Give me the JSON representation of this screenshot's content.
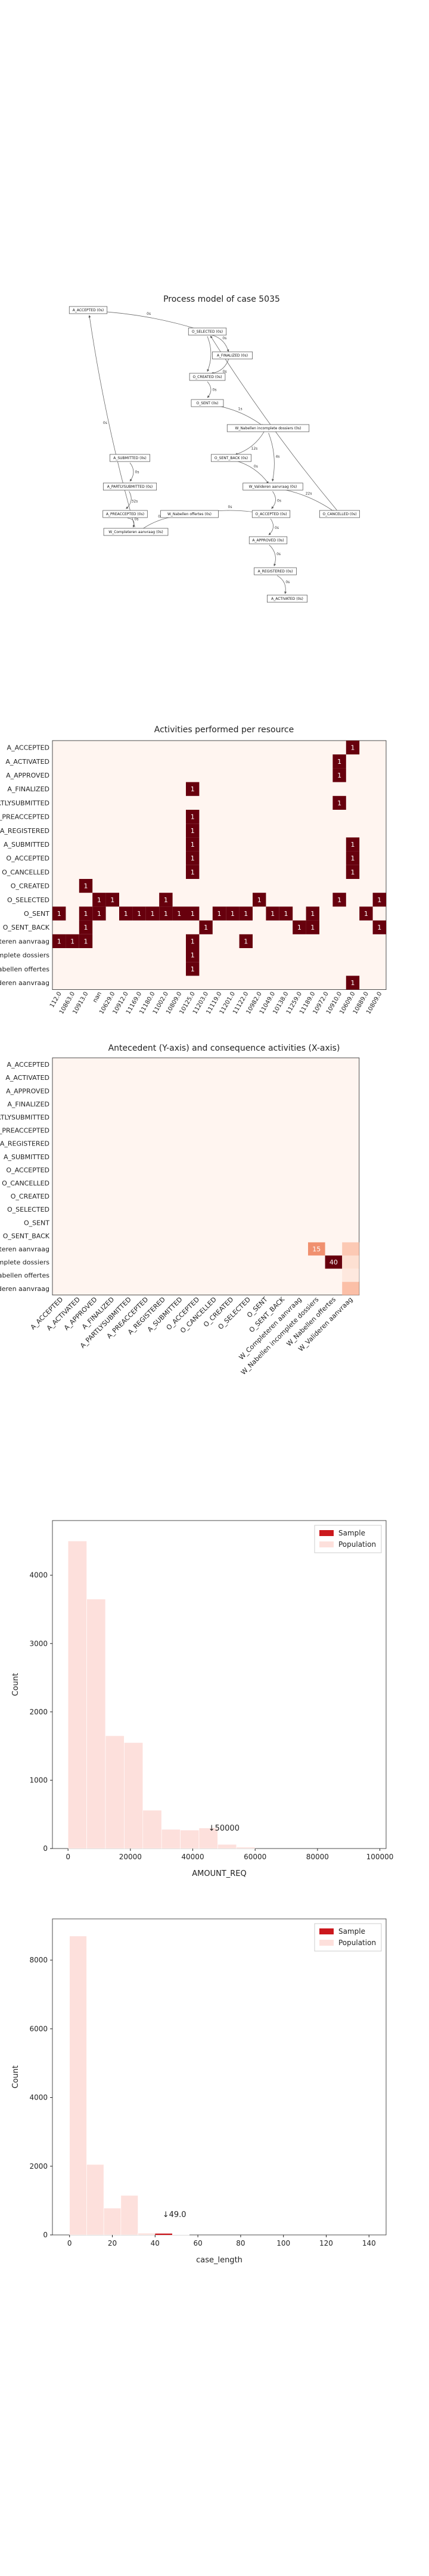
{
  "process_model": {
    "title": "Process model of case 5035",
    "nodes": [
      {
        "id": "A_ACCEPTED",
        "label": "A_ACCEPTED (0s)"
      },
      {
        "id": "O_SELECTED",
        "label": "O_SELECTED (0s)"
      },
      {
        "id": "A_FINALIZED",
        "label": "A_FINALIZED (0s)"
      },
      {
        "id": "O_CREATED",
        "label": "O_CREATED (0s)"
      },
      {
        "id": "O_SENT",
        "label": "O_SENT (0s)"
      },
      {
        "id": "W_Nabellen_inc",
        "label": "W_Nabellen incomplete dossiers (0s)"
      },
      {
        "id": "A_SUBMITTED",
        "label": "A_SUBMITTED (0s)"
      },
      {
        "id": "O_SENT_BACK",
        "label": "O_SENT_BACK (0s)"
      },
      {
        "id": "A_PARTLYSUBMITTED",
        "label": "A_PARTLYSUBMITTED (0s)"
      },
      {
        "id": "W_Valideren",
        "label": "W_Valideren aanvraag (0s)"
      },
      {
        "id": "A_PREACCEPTED",
        "label": "A_PREACCEPTED (0s)"
      },
      {
        "id": "W_Nabellen_off",
        "label": "W_Nabellen offertes (0s)"
      },
      {
        "id": "O_ACCEPTED",
        "label": "O_ACCEPTED (0s)"
      },
      {
        "id": "O_CANCELLED",
        "label": "O_CANCELLED (0s)"
      },
      {
        "id": "W_Completeren",
        "label": "W_Completeren aanvraag (0s)"
      },
      {
        "id": "A_APPROVED",
        "label": "A_APPROVED (0s)"
      },
      {
        "id": "A_REGISTERED",
        "label": "A_REGISTERED (0s)"
      },
      {
        "id": "A_ACTIVATED",
        "label": "A_ACTIVATED (0s)"
      }
    ],
    "edges": [
      {
        "from": "A_ACCEPTED",
        "to": "O_SELECTED",
        "label": "0s"
      },
      {
        "from": "O_SELECTED",
        "to": "A_FINALIZED",
        "label": "0s"
      },
      {
        "from": "O_SELECTED",
        "to": "O_CREATED",
        "label": "0s"
      },
      {
        "from": "A_FINALIZED",
        "to": "O_CREATED",
        "label": "0s"
      },
      {
        "from": "O_CREATED",
        "to": "O_SENT",
        "label": "0s"
      },
      {
        "from": "O_SENT",
        "to": "W_Nabellen_inc",
        "label": "1s"
      },
      {
        "from": "W_Nabellen_inc",
        "to": "O_SENT_BACK",
        "label": "12s"
      },
      {
        "from": "W_Nabellen_inc",
        "to": "W_Valideren",
        "label": "4s"
      },
      {
        "from": "O_SENT_BACK",
        "to": "W_Valideren",
        "label": "0s"
      },
      {
        "from": "A_SUBMITTED",
        "to": "A_PARTLYSUBMITTED",
        "label": "0s"
      },
      {
        "from": "A_PARTLYSUBMITTED",
        "to": "A_PREACCEPTED",
        "label": "32s"
      },
      {
        "from": "A_PREACCEPTED",
        "to": "W_Completeren",
        "label": "0s"
      },
      {
        "from": "W_Completeren",
        "to": "W_Nabellen_off",
        "label": "0s"
      },
      {
        "from": "W_Nabellen_off",
        "to": "O_ACCEPTED",
        "label": "0s"
      },
      {
        "from": "W_Valideren",
        "to": "O_ACCEPTED",
        "label": "0s"
      },
      {
        "from": "W_Valideren",
        "to": "O_CANCELLED",
        "label": "22s"
      },
      {
        "from": "O_ACCEPTED",
        "to": "A_APPROVED",
        "label": "0s"
      },
      {
        "from": "A_APPROVED",
        "to": "A_REGISTERED",
        "label": "0s"
      },
      {
        "from": "A_REGISTERED",
        "to": "A_ACTIVATED",
        "label": "0s"
      },
      {
        "from": "W_Completeren",
        "to": "A_ACCEPTED",
        "label": "0s"
      },
      {
        "from": "O_CANCELLED",
        "to": "O_SELECTED",
        "label": "0s"
      }
    ]
  },
  "chart_data": [
    {
      "type": "heatmap",
      "title": "Activities performed per resource",
      "y_categories": [
        "A_ACCEPTED",
        "A_ACTIVATED",
        "A_APPROVED",
        "A_FINALIZED",
        "A_PARTLYSUBMITTED",
        "A_PREACCEPTED",
        "A_REGISTERED",
        "A_SUBMITTED",
        "O_ACCEPTED",
        "O_CANCELLED",
        "O_CREATED",
        "O_SELECTED",
        "O_SENT",
        "O_SENT_BACK",
        "W_Completeren aanvraag",
        "W_Nabellen incomplete dossiers",
        "W_Nabellen offertes",
        "W_Valideren aanvraag"
      ],
      "x_categories": [
        "112.0",
        "10863.0",
        "10913.0",
        "nan",
        "10629.0",
        "10912.0",
        "11169.0",
        "11180.0",
        "11002.0",
        "10809.0",
        "10125.0",
        "11203.0",
        "11119.0",
        "11201.0",
        "11122.0",
        "10982.0",
        "11049.0",
        "10138.0",
        "11259.0",
        "11189.0",
        "10972.0",
        "10910.0",
        "10609.0",
        "10889.0",
        "10809.0"
      ],
      "cells": [
        [
          0,
          "22",
          "1"
        ],
        [
          1,
          "21",
          "1"
        ],
        [
          2,
          "21",
          "1"
        ],
        [
          3,
          "10",
          "1"
        ],
        [
          4,
          "21",
          "1"
        ],
        [
          5,
          "10",
          "1"
        ],
        [
          6,
          "10",
          "1"
        ],
        [
          7,
          "10",
          "1"
        ],
        [
          8,
          "10",
          "1"
        ],
        [
          9,
          "10",
          "1"
        ],
        [
          7,
          "22",
          "1"
        ],
        [
          8,
          "22",
          "1"
        ],
        [
          9,
          "22",
          "1"
        ],
        [
          10,
          "2",
          "1"
        ],
        [
          11,
          "3",
          "1"
        ],
        [
          11,
          "4",
          "1"
        ],
        [
          11,
          "8",
          "1"
        ],
        [
          11,
          "15",
          "1"
        ],
        [
          11,
          "21",
          "1"
        ],
        [
          11,
          "24",
          "1"
        ],
        [
          12,
          "0",
          "1"
        ],
        [
          12,
          "2",
          "1"
        ],
        [
          12,
          "3",
          "1"
        ],
        [
          12,
          "5",
          "1"
        ],
        [
          12,
          "6",
          "1"
        ],
        [
          12,
          "7",
          "1"
        ],
        [
          12,
          "8",
          "1"
        ],
        [
          12,
          "9",
          "1"
        ],
        [
          12,
          "10",
          "1"
        ],
        [
          12,
          "12",
          "1"
        ],
        [
          12,
          "13",
          "1"
        ],
        [
          12,
          "14",
          "1"
        ],
        [
          12,
          "16",
          "1"
        ],
        [
          12,
          "17",
          "1"
        ],
        [
          12,
          "19",
          "1"
        ],
        [
          12,
          "23",
          "1"
        ],
        [
          13,
          "2",
          "1"
        ],
        [
          13,
          "11",
          "1"
        ],
        [
          13,
          "18",
          "1"
        ],
        [
          13,
          "19",
          "1"
        ],
        [
          13,
          "24",
          "1"
        ],
        [
          14,
          "0",
          "1"
        ],
        [
          14,
          "1",
          "1"
        ],
        [
          14,
          "2",
          "1"
        ],
        [
          14,
          "10",
          "1"
        ],
        [
          14,
          "14",
          "1"
        ],
        [
          15,
          "10",
          "1"
        ],
        [
          16,
          "10",
          "1"
        ],
        [
          17,
          "22",
          "1"
        ]
      ]
    },
    {
      "type": "heatmap",
      "title": "Antecedent (Y-axis) and consequence activities (X-axis)",
      "categories": [
        "A_ACCEPTED",
        "A_ACTIVATED",
        "A_APPROVED",
        "A_FINALIZED",
        "A_PARTLYSUBMITTED",
        "A_PREACCEPTED",
        "A_REGISTERED",
        "A_SUBMITTED",
        "O_ACCEPTED",
        "O_CANCELLED",
        "O_CREATED",
        "O_SELECTED",
        "O_SENT",
        "O_SENT_BACK",
        "W_Completeren aanvraag",
        "W_Nabellen incomplete dossiers",
        "W_Nabellen offertes",
        "W_Valideren aanvraag"
      ],
      "cells": [
        [
          14,
          15,
          15
        ],
        [
          15,
          16,
          40
        ],
        [
          14,
          17,
          6
        ],
        [
          15,
          17,
          3
        ],
        [
          16,
          17,
          2
        ],
        [
          17,
          17,
          9
        ]
      ]
    },
    {
      "type": "bar",
      "xlabel": "AMOUNT_REQ",
      "ylabel": "Count",
      "legend": [
        "Sample",
        "Population"
      ],
      "legend_position": "top-right",
      "bin_edges": [
        0,
        6000,
        12000,
        18000,
        24000,
        30000,
        36000,
        42000,
        48000,
        54000,
        60000
      ],
      "population_counts": [
        4500,
        3650,
        1650,
        1550,
        560,
        280,
        270,
        300,
        60,
        20
      ],
      "sample_counts": [
        0,
        0,
        0,
        0,
        0,
        0,
        0,
        0,
        0,
        0
      ],
      "xlim": [
        -5000,
        102000
      ],
      "ylim": [
        0,
        4800
      ],
      "x_ticks": [
        0,
        20000,
        40000,
        60000,
        80000,
        100000
      ],
      "y_ticks": [
        0,
        1000,
        2000,
        3000,
        4000
      ],
      "marker": {
        "value": 50000,
        "label": "↓50000"
      }
    },
    {
      "type": "bar",
      "xlabel": "case_length",
      "ylabel": "Count",
      "legend": [
        "Sample",
        "Population"
      ],
      "legend_position": "top-right",
      "bin_edges": [
        0,
        8,
        16,
        24,
        32,
        40,
        48,
        56
      ],
      "population_counts": [
        8700,
        2050,
        780,
        1150,
        50,
        20,
        10
      ],
      "sample_counts": [
        0,
        0,
        0,
        0,
        0,
        5,
        0
      ],
      "xlim": [
        -8,
        148
      ],
      "ylim": [
        0,
        9200
      ],
      "x_ticks": [
        0,
        20,
        40,
        60,
        80,
        100,
        120,
        140
      ],
      "y_ticks": [
        0,
        2000,
        4000,
        6000,
        8000
      ],
      "marker": {
        "value": 49,
        "label": "↓49.0"
      }
    }
  ],
  "colors": {
    "dark": "#67000d",
    "light": "#fff5f0",
    "sample": "#cb181d",
    "population": "#fde0dc"
  }
}
